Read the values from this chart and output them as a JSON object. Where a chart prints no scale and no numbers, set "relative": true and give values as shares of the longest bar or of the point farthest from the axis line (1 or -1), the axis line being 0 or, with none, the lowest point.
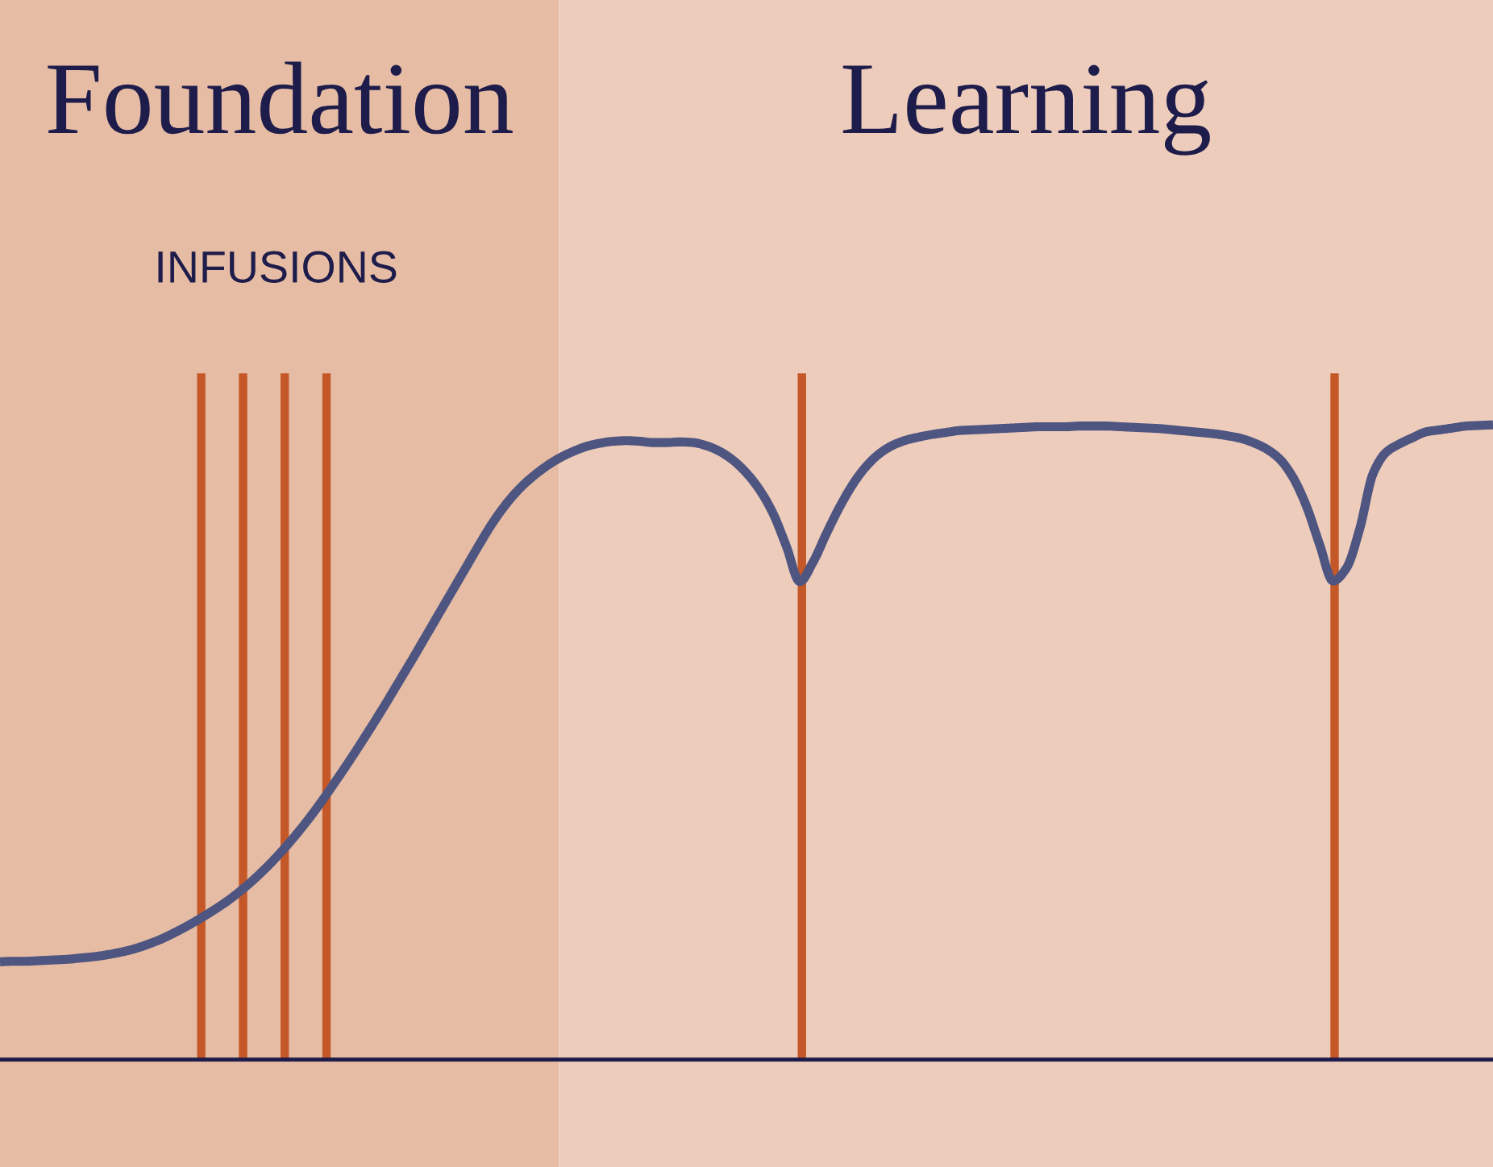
{
  "chart_data": {
    "type": "line",
    "relative": true,
    "categories": [
      null,
      null,
      null,
      null,
      null,
      null,
      null,
      null,
      null,
      null,
      null,
      null,
      null,
      null,
      null,
      null,
      null,
      null,
      null,
      null,
      null,
      null,
      null,
      null,
      null,
      null,
      null,
      null,
      null,
      null,
      null,
      null,
      null,
      null,
      null,
      null,
      null,
      null,
      null,
      null,
      null,
      null,
      null,
      null,
      null,
      null,
      null,
      null,
      null,
      null,
      null,
      null,
      null,
      null,
      null,
      null,
      null,
      null,
      null,
      null,
      null,
      null,
      null,
      null,
      null,
      null,
      null,
      null,
      null,
      null,
      null,
      null,
      null,
      null,
      null,
      null,
      null,
      null,
      null,
      null,
      null,
      null,
      null,
      null,
      null,
      null,
      null,
      null,
      null,
      null,
      null,
      null,
      null,
      null,
      null,
      null,
      null,
      null,
      null,
      null,
      null,
      null,
      null,
      null,
      null,
      null,
      null,
      null,
      null,
      null,
      null,
      null,
      null
    ],
    "series": [
      {
        "color": "#4e5580",
        "values": [
          0.154,
          0.155,
          0.155,
          0.156,
          0.157,
          0.158,
          0.16,
          0.162,
          0.165,
          0.169,
          0.174,
          0.181,
          0.189,
          0.199,
          0.21,
          0.222,
          0.235,
          0.249,
          0.265,
          0.283,
          0.303,
          0.325,
          0.349,
          0.375,
          0.403,
          0.433,
          0.464,
          0.496,
          0.529,
          0.563,
          0.598,
          0.633,
          0.669,
          0.705,
          0.741,
          0.777,
          0.813,
          0.847,
          0.876,
          0.9,
          0.919,
          0.935,
          0.948,
          0.958,
          0.966,
          0.971,
          0.974,
          0.975,
          0.974,
          0.972,
          0.972,
          0.973,
          0.972,
          0.967,
          0.958,
          0.944,
          0.924,
          0.897,
          0.86,
          0.808,
          0.753,
          0.784,
          0.829,
          0.871,
          0.907,
          0.935,
          0.955,
          0.968,
          0.976,
          0.981,
          0.985,
          0.988,
          0.991,
          0.992,
          0.993,
          0.994,
          0.995,
          0.996,
          0.997,
          0.997,
          0.997,
          0.998,
          0.998,
          0.998,
          0.997,
          0.996,
          0.995,
          0.994,
          0.992,
          0.99,
          0.988,
          0.986,
          0.983,
          0.979,
          0.972,
          0.962,
          0.946,
          0.917,
          0.872,
          0.811,
          0.754,
          0.774,
          0.836,
          0.923,
          0.957,
          0.97,
          0.98,
          0.989,
          0.992,
          0.995,
          0.998,
          0.999,
          1.0
        ]
      }
    ],
    "annotations": [
      "Foundation",
      "Learning",
      "INFUSIONS"
    ]
  }
}
